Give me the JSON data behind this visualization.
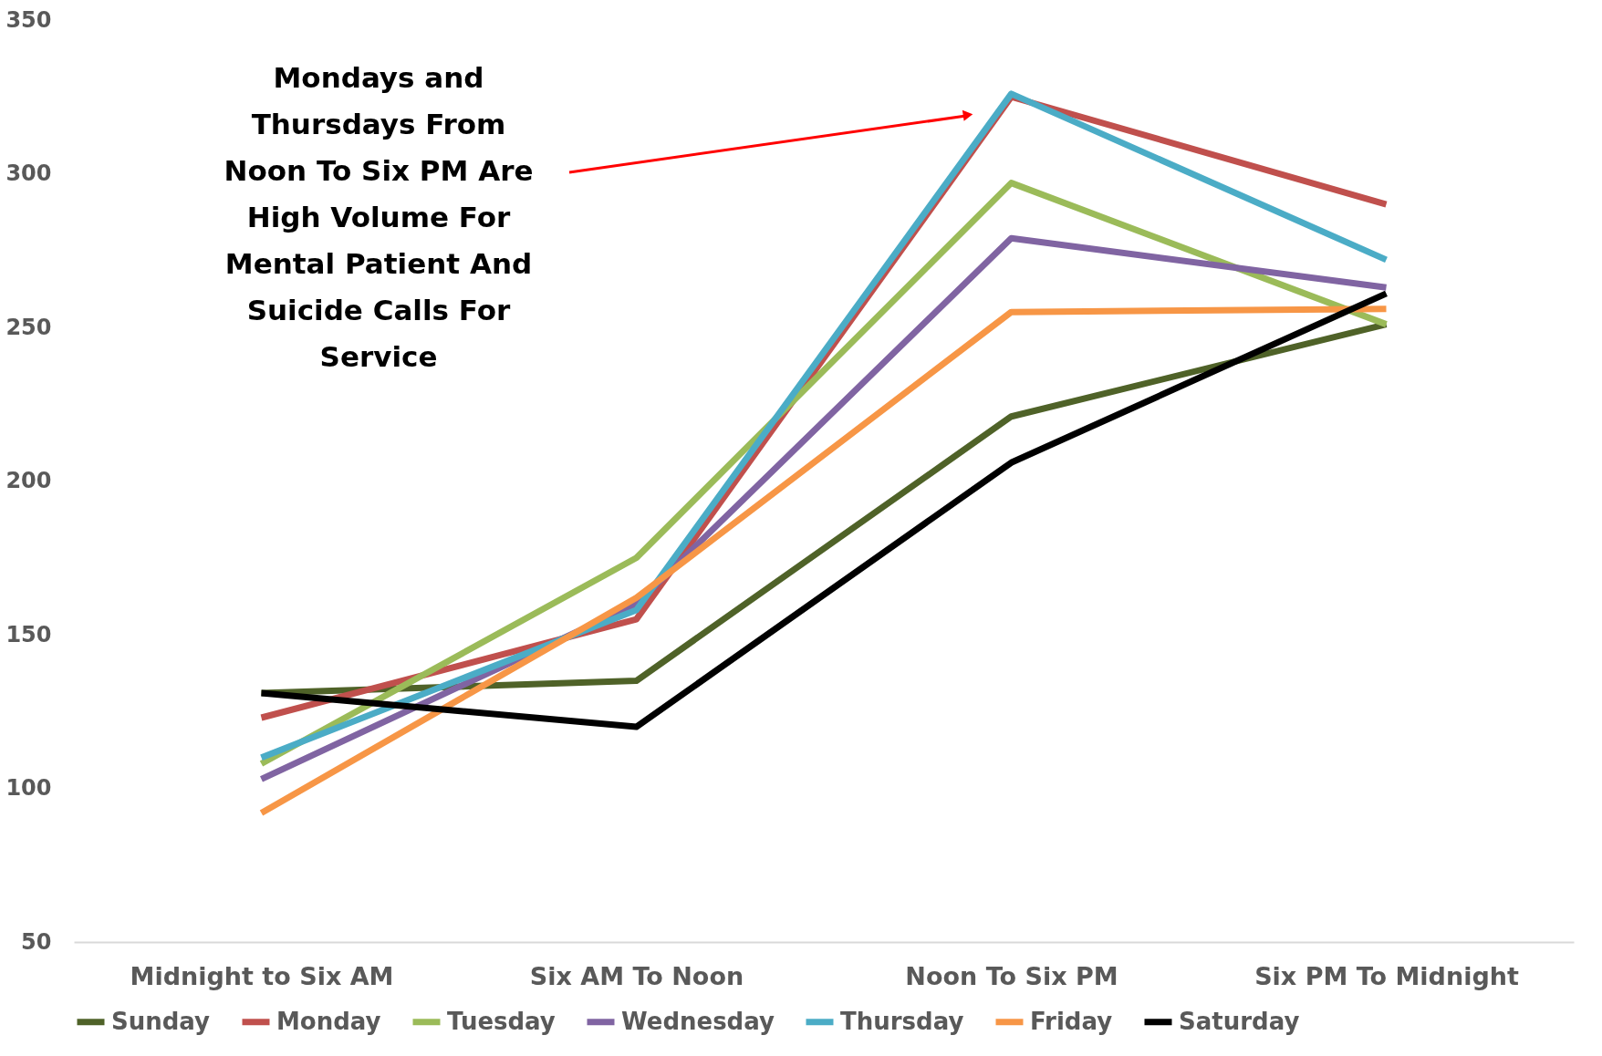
{
  "chart_data": {
    "type": "line",
    "categories": [
      "Midnight to Six AM",
      "Six AM To Noon",
      "Noon To Six PM",
      "Six PM To Midnight"
    ],
    "series": [
      {
        "name": "Sunday",
        "color": "#4f6228",
        "values": [
          131,
          135,
          221,
          251
        ]
      },
      {
        "name": "Monday",
        "color": "#c0504d",
        "values": [
          123,
          155,
          325,
          290
        ]
      },
      {
        "name": "Tuesday",
        "color": "#9bbb59",
        "values": [
          108,
          175,
          297,
          251
        ]
      },
      {
        "name": "Wednesday",
        "color": "#8064a2",
        "values": [
          103,
          160,
          279,
          263
        ]
      },
      {
        "name": "Thursday",
        "color": "#4bacc6",
        "values": [
          110,
          158,
          326,
          272
        ]
      },
      {
        "name": "Friday",
        "color": "#f79646",
        "values": [
          92,
          162,
          255,
          256
        ]
      },
      {
        "name": "Saturday",
        "color": "#000000",
        "values": [
          131,
          120,
          206,
          261
        ]
      }
    ],
    "ylim": [
      50,
      350
    ],
    "yticks": [
      50,
      100,
      150,
      200,
      250,
      300,
      350
    ],
    "grid": false,
    "legend": "bottom",
    "marker": "none",
    "line_style": "solid",
    "annotations": [
      "Mondays and\nThursdays From\nNoon To Six PM Are\nHigh Volume For\nMental Patient And\nSuicide Calls For\nService"
    ]
  }
}
